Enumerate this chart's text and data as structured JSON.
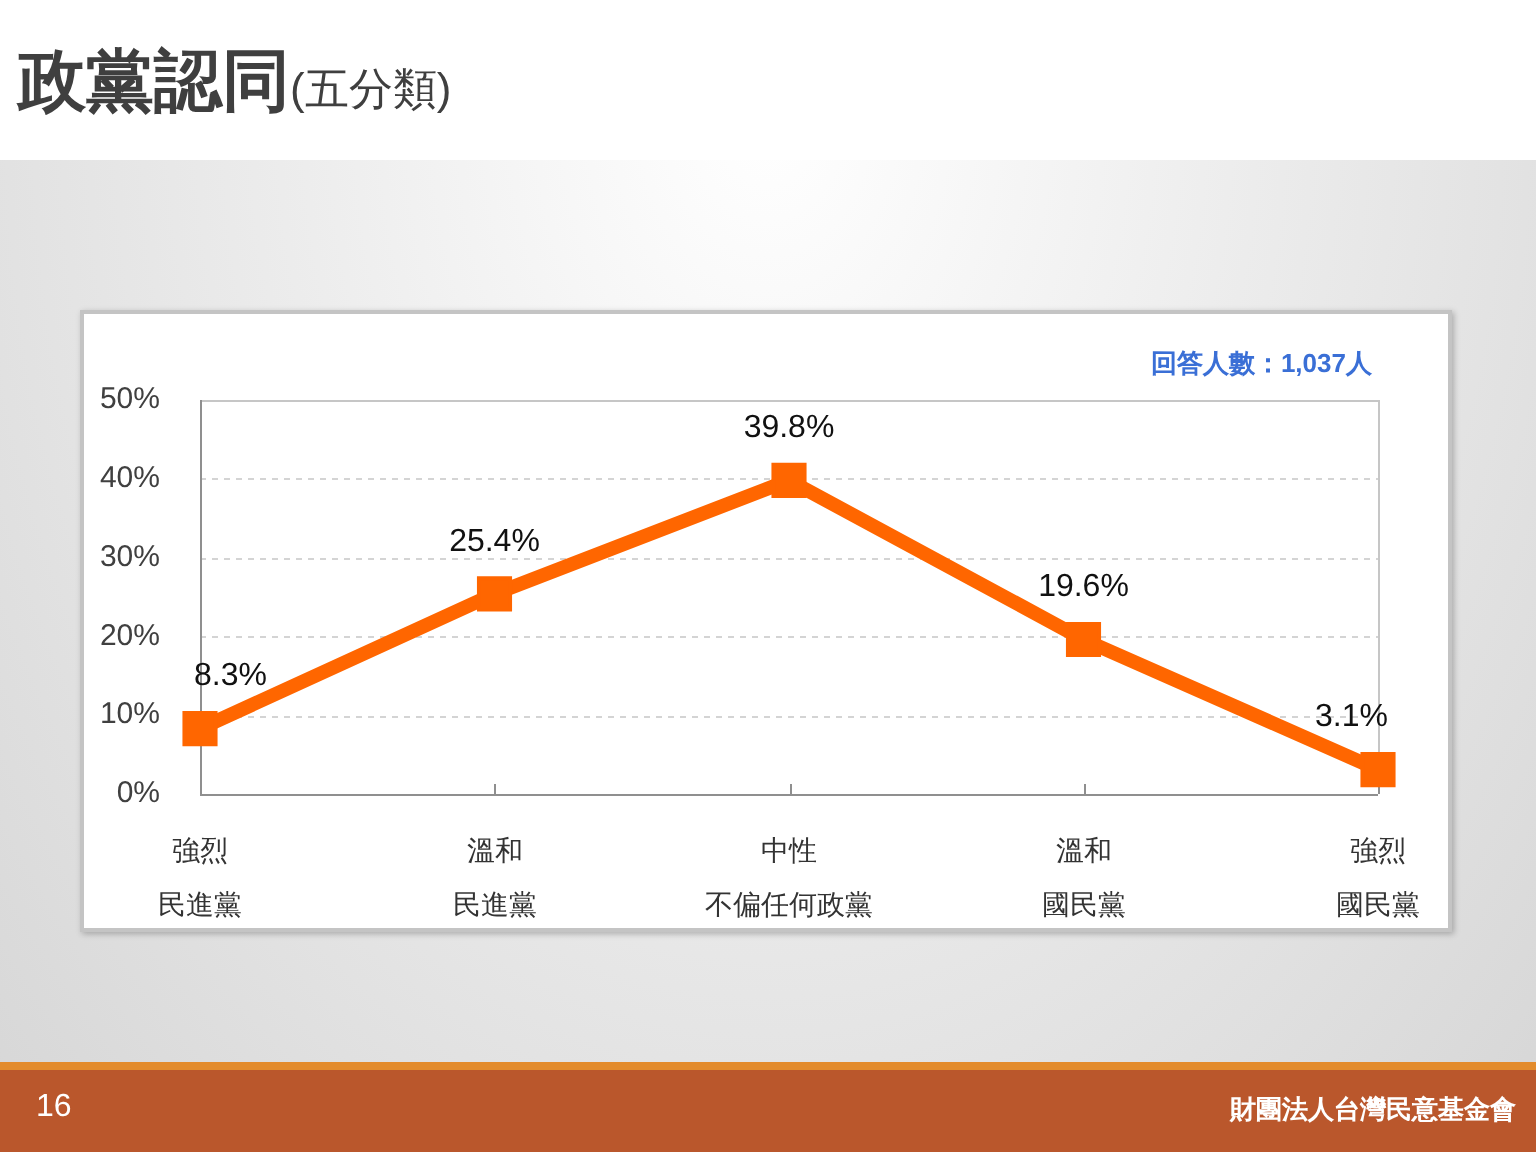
{
  "chart_data": {
    "type": "line",
    "title": "政黨認同",
    "subtitle": "(五分類)",
    "categories": [
      "強烈民進黨",
      "溫和民進黨",
      "中性不偏任何政黨",
      "溫和國民黨",
      "強烈國民黨"
    ],
    "values": [
      8.3,
      25.4,
      39.8,
      19.6,
      3.1
    ],
    "color": "#ff6600",
    "value_labels": [
      "8.3%",
      "25.4%",
      "39.8%",
      "19.6%",
      "3.1%"
    ],
    "ylim": [
      0,
      50
    ],
    "yticks": [
      {
        "value": 0,
        "label": "0%"
      },
      {
        "value": 10,
        "label": "10%"
      },
      {
        "value": 20,
        "label": "20%"
      },
      {
        "value": 30,
        "label": "30%"
      },
      {
        "value": 40,
        "label": "40%"
      },
      {
        "value": 50,
        "label": "50%"
      }
    ],
    "grid": "y",
    "legend": false,
    "marker": "square",
    "annotations": [
      "回答人數：1,037人",
      "16",
      "財團法人台灣民意基金會"
    ]
  }
}
